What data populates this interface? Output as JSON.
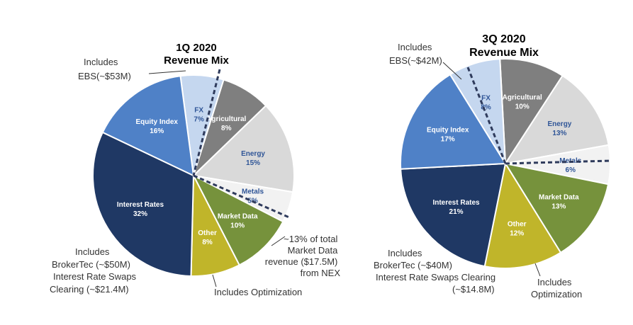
{
  "chart_data": [
    {
      "type": "pie",
      "title_line1": "1Q 2020",
      "title_line2": "Revenue Mix",
      "unit": "%",
      "categories": [
        "FX",
        "Agricultural",
        "Energy",
        "Metals",
        "Market Data",
        "Other",
        "Interest Rates",
        "Equity Index"
      ],
      "values": [
        7,
        8,
        15,
        5,
        10,
        8,
        32,
        16
      ],
      "colors": [
        "#c5d7ef",
        "#7f7f7f",
        "#d9d9d9",
        "#f2f2f2",
        "#76923c",
        "#c0b52a",
        "#1f3864",
        "#4f81c7"
      ],
      "label_colors": [
        "#2f5597",
        "#ffffff",
        "#2f5597",
        "#2f5597",
        "#ffffff",
        "#ffffff",
        "#ffffff",
        "#ffffff"
      ],
      "annotations": [
        {
          "lines": [
            "Includes",
            "EBS(~$53M)"
          ]
        },
        {
          "lines": [
            "~13% of total",
            "Market Data",
            "revenue ($17.5M)",
            "from NEX"
          ]
        },
        {
          "lines": [
            "Includes Optimization"
          ]
        },
        {
          "lines": [
            "Includes",
            "BrokerTec (~$50M)",
            "Interest Rate Swaps",
            "Clearing (~$21.4M)"
          ]
        }
      ]
    },
    {
      "type": "pie",
      "title_line1": "3Q 2020",
      "title_line2": "Revenue Mix",
      "unit": "%",
      "categories": [
        "Agricultural",
        "Energy",
        "Metals",
        "Market Data",
        "Other",
        "Interest Rates",
        "Equity Index",
        "FX"
      ],
      "values": [
        10,
        13,
        6,
        13,
        12,
        21,
        17,
        8
      ],
      "colors": [
        "#7f7f7f",
        "#d9d9d9",
        "#f2f2f2",
        "#76923c",
        "#c0b52a",
        "#1f3864",
        "#4f81c7",
        "#c5d7ef"
      ],
      "label_colors": [
        "#ffffff",
        "#2f5597",
        "#2f5597",
        "#ffffff",
        "#ffffff",
        "#ffffff",
        "#ffffff",
        "#2f5597"
      ],
      "annotations": [
        {
          "lines": [
            "Includes",
            "EBS(~$42M)"
          ]
        },
        {
          "lines": [
            "Includes",
            "Optimization"
          ]
        },
        {
          "lines": [
            "Includes",
            "BrokerTec (~$40M)",
            "Interest Rate Swaps Clearing",
            "(~$14.8M)"
          ]
        }
      ]
    }
  ]
}
